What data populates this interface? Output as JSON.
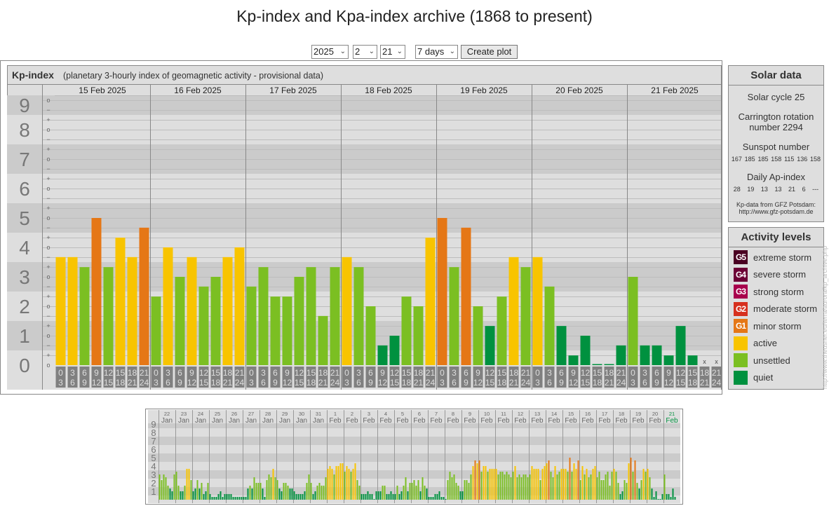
{
  "page_title": "Kp-index and Kpa-index archive (1868 to present)",
  "controls": {
    "year": "2025",
    "month": "2",
    "day": "21",
    "range": "7 days",
    "create_label": "Create plot"
  },
  "colors": {
    "quiet": "#00913f",
    "unsettled": "#7bbf22",
    "active": "#f8c400",
    "G1": "#e57716",
    "G2": "#d6301e",
    "G3": "#a8004c",
    "G4": "#6c0035",
    "G5": "#4a0022"
  },
  "chart_data": [
    {
      "type": "bar",
      "title": "Kp-index",
      "subtitle": "(planetary 3-hourly index of geomagnetic activity - provisional data)",
      "ylim": [
        0,
        9
      ],
      "y_ticks": [
        "0",
        "1",
        "2",
        "3",
        "4",
        "5",
        "6",
        "7",
        "8",
        "9"
      ],
      "time_slots": [
        [
          "0",
          "3"
        ],
        [
          "3",
          "6"
        ],
        [
          "6",
          "9"
        ],
        [
          "9",
          "12"
        ],
        [
          "12",
          "15"
        ],
        [
          "15",
          "18"
        ],
        [
          "18",
          "21"
        ],
        [
          "21",
          "24"
        ]
      ],
      "missing_marker": "x",
      "days": [
        {
          "label": "15 Feb 2025",
          "kp": [
            3.67,
            3.67,
            3.33,
            5,
            3.33,
            4.33,
            3.67,
            4.67
          ]
        },
        {
          "label": "16 Feb 2025",
          "kp": [
            2.33,
            4,
            3,
            3.67,
            2.67,
            3,
            3.67,
            4
          ]
        },
        {
          "label": "17 Feb 2025",
          "kp": [
            2.67,
            3.33,
            2.33,
            2.33,
            3,
            3.33,
            1.67,
            3.33
          ]
        },
        {
          "label": "18 Feb 2025",
          "kp": [
            3.67,
            3.33,
            2,
            0.67,
            1,
            2.33,
            2,
            4.33
          ]
        },
        {
          "label": "19 Feb 2025",
          "kp": [
            5,
            3.33,
            4.67,
            2,
            1.33,
            2.33,
            3.67,
            3.33
          ]
        },
        {
          "label": "20 Feb 2025",
          "kp": [
            3.67,
            2.67,
            1.33,
            0.33,
            1,
            0,
            0,
            0.67
          ]
        },
        {
          "label": "21 Feb 2025",
          "kp": [
            3,
            0.67,
            0.67,
            0.33,
            1.33,
            0.33,
            null,
            null
          ]
        }
      ]
    },
    {
      "type": "bar",
      "title": "Kp-index last 31 days",
      "ylim": [
        0,
        9
      ],
      "y_ticks": [
        "1",
        "2",
        "3",
        "4",
        "5",
        "6",
        "7",
        "8",
        "9"
      ],
      "days": [
        {
          "d": "22",
          "m": "Jan",
          "kp": [
            3,
            2.33,
            3,
            2.67,
            1.67,
            1.33,
            1,
            3
          ]
        },
        {
          "d": "23",
          "m": "Jan",
          "kp": [
            3.33,
            1.67,
            1,
            1,
            1.67,
            3.67,
            3.67,
            2.33
          ]
        },
        {
          "d": "24",
          "m": "Jan",
          "kp": [
            1,
            1.33,
            2.33,
            1.33,
            2,
            0.67,
            1,
            2
          ]
        },
        {
          "d": "25",
          "m": "Jan",
          "kp": [
            0.67,
            0.33,
            0.33,
            0.33,
            0.67,
            1,
            0.33,
            0.67
          ]
        },
        {
          "d": "26",
          "m": "Jan",
          "kp": [
            0.67,
            0.67,
            0.67,
            0.33,
            0.33,
            0.33,
            0.33,
            0.33
          ]
        },
        {
          "d": "27",
          "m": "Jan",
          "kp": [
            0.33,
            0.33,
            1.33,
            1.67,
            1.33,
            2.67,
            2,
            2
          ]
        },
        {
          "d": "28",
          "m": "Jan",
          "kp": [
            2,
            1.33,
            0.33,
            2.33,
            3,
            2.67,
            3.67,
            2.67
          ]
        },
        {
          "d": "29",
          "m": "Jan",
          "kp": [
            2.33,
            1.33,
            1,
            2,
            2,
            1.67,
            1.33,
            1.33
          ]
        },
        {
          "d": "30",
          "m": "Jan",
          "kp": [
            1,
            0.67,
            0.67,
            0.67,
            0.67,
            1,
            2,
            3
          ]
        },
        {
          "d": "31",
          "m": "Jan",
          "kp": [
            2,
            0.67,
            1,
            1.67,
            2,
            1.67,
            1.67,
            2.67
          ]
        },
        {
          "d": "1",
          "m": "Feb",
          "kp": [
            3.67,
            4,
            3.67,
            3,
            4,
            4,
            4.33,
            4.33
          ]
        },
        {
          "d": "2",
          "m": "Feb",
          "kp": [
            3.33,
            4,
            3.67,
            3.33,
            3.67,
            4.33,
            2.33,
            1.67
          ]
        },
        {
          "d": "3",
          "m": "Feb",
          "kp": [
            0.67,
            0.67,
            0.67,
            1,
            0.67,
            0.67,
            0,
            1
          ]
        },
        {
          "d": "4",
          "m": "Feb",
          "kp": [
            1,
            1,
            1.67,
            1.67,
            0.67,
            0.67,
            1,
            0.67
          ]
        },
        {
          "d": "5",
          "m": "Feb",
          "kp": [
            0.67,
            1.67,
            0.67,
            1,
            1.67,
            2.67,
            1,
            2
          ]
        },
        {
          "d": "6",
          "m": "Feb",
          "kp": [
            2,
            2.33,
            1.67,
            2.33,
            1,
            2.67,
            1.67,
            1.33
          ]
        },
        {
          "d": "7",
          "m": "Feb",
          "kp": [
            0.33,
            0.33,
            0.33,
            0.67,
            0.67,
            1,
            0.33,
            0.33
          ]
        },
        {
          "d": "8",
          "m": "Feb",
          "kp": [
            0,
            2.33,
            3.33,
            2.67,
            3,
            2,
            1.67,
            1
          ]
        },
        {
          "d": "9",
          "m": "Feb",
          "kp": [
            1,
            2.33,
            2.33,
            2,
            3,
            4,
            4.67,
            4.33
          ]
        },
        {
          "d": "10",
          "m": "Feb",
          "kp": [
            4.67,
            3.33,
            4,
            4,
            3.33,
            3.67,
            3.67,
            3.67
          ]
        },
        {
          "d": "11",
          "m": "Feb",
          "kp": [
            3.67,
            3,
            3.33,
            3.33,
            3,
            3.33,
            3,
            2.67
          ]
        },
        {
          "d": "12",
          "m": "Feb",
          "kp": [
            3.33,
            4,
            2.67,
            3,
            2.67,
            3,
            3,
            2.67
          ]
        },
        {
          "d": "13",
          "m": "Feb",
          "kp": [
            3,
            4,
            3.67,
            3.67,
            3.67,
            2.33,
            3.67,
            4
          ]
        },
        {
          "d": "14",
          "m": "Feb",
          "kp": [
            4.33,
            4.67,
            3.33,
            2.67,
            4,
            3,
            3.33,
            3.67
          ]
        },
        {
          "d": "15",
          "m": "Feb",
          "kp": [
            3.67,
            3.67,
            3.33,
            5,
            3.33,
            4.33,
            3.67,
            4.67
          ]
        },
        {
          "d": "16",
          "m": "Feb",
          "kp": [
            2.33,
            4,
            3,
            3.67,
            2.67,
            3,
            3.67,
            4
          ]
        },
        {
          "d": "17",
          "m": "Feb",
          "kp": [
            2.67,
            3.33,
            2.33,
            2.33,
            3,
            3.33,
            1.67,
            3.33
          ]
        },
        {
          "d": "18",
          "m": "Feb",
          "kp": [
            3.67,
            3.33,
            2,
            0.67,
            1,
            2.33,
            2,
            4.33
          ]
        },
        {
          "d": "19",
          "m": "Feb",
          "kp": [
            5,
            3.33,
            4.67,
            2,
            1.33,
            2.33,
            3.67,
            3.33
          ]
        },
        {
          "d": "20",
          "m": "Feb",
          "kp": [
            3.67,
            2.67,
            1.33,
            0.33,
            1,
            0,
            0,
            0.67
          ]
        },
        {
          "d": "21",
          "m": "Feb",
          "kp": [
            3,
            0.67,
            0.67,
            0.33,
            1.33,
            0.33,
            null,
            null
          ],
          "current": true
        }
      ]
    }
  ],
  "solar": {
    "title": "Solar data",
    "cycle": "Solar cycle 25",
    "carrington_1": "Carrington rotation",
    "carrington_2": "number 2294",
    "sunspot_title": "Sunspot number",
    "sunspots": [
      "167",
      "185",
      "185",
      "158",
      "115",
      "136",
      "158"
    ],
    "ap_title": "Daily Ap-index",
    "ap": [
      "28",
      "19",
      "13",
      "13",
      "21",
      "6",
      "---"
    ],
    "source_1": "Kp-data from  GFZ Potsdam:",
    "source_2": "http://www.gfz-potsdam.de"
  },
  "activity": {
    "title": "Activity levels",
    "items": [
      {
        "badge": "G5",
        "label": "extreme storm",
        "color": "#4a0022"
      },
      {
        "badge": "G4",
        "label": "severe storm",
        "color": "#6c0035"
      },
      {
        "badge": "G3",
        "label": "strong storm",
        "color": "#a8004c"
      },
      {
        "badge": "G2",
        "label": "moderate storm",
        "color": "#d6301e"
      },
      {
        "badge": "G1",
        "label": "minor storm",
        "color": "#e57716"
      },
      {
        "badge": "",
        "label": "active",
        "color": "#f8c400"
      },
      {
        "badge": "",
        "label": "unsettled",
        "color": "#7bbf22"
      },
      {
        "badge": "",
        "label": "quiet",
        "color": "#00913f"
      }
    ]
  },
  "source_url": "http://www.theusner.eu/terra/aurora/kp_archive.php"
}
